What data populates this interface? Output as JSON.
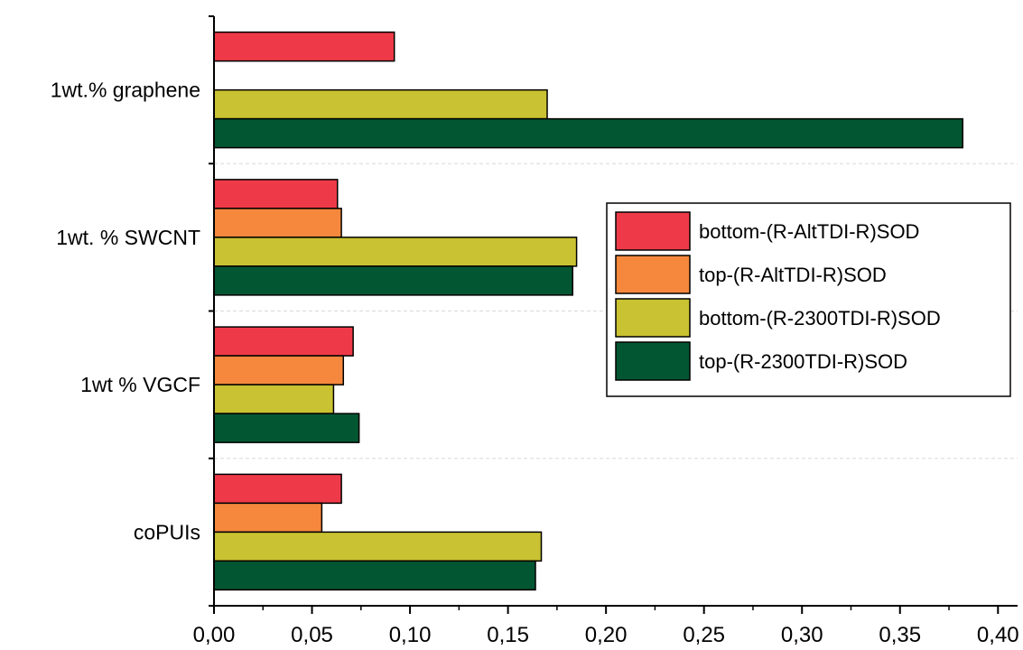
{
  "chart_data": {
    "type": "bar",
    "orientation": "horizontal",
    "categories": [
      "1wt.% graphene",
      "1wt. % SWCNT",
      "1wt % VGCF",
      "coPUIs"
    ],
    "series": [
      {
        "name": "bottom-(R-AltTDI-R)SOD",
        "color": "#ee3a48",
        "values": [
          0.092,
          0.063,
          0.071,
          0.065
        ]
      },
      {
        "name": "top-(R-AltTDI-R)SOD",
        "color": "#f5883c",
        "values": [
          null,
          0.065,
          0.066,
          0.055
        ]
      },
      {
        "name": "bottom-(R-2300TDI-R)SOD",
        "color": "#c9c232",
        "values": [
          0.17,
          0.185,
          0.061,
          0.167
        ]
      },
      {
        "name": "top-(R-2300TDI-R)SOD",
        "color": "#035632",
        "values": [
          0.382,
          0.183,
          0.074,
          0.164
        ]
      }
    ],
    "x_ticks": [
      "0,00",
      "0,05",
      "0,10",
      "0,15",
      "0,20",
      "0,25",
      "0,30",
      "0,35",
      "0,40"
    ],
    "xlim": [
      0,
      0.41
    ],
    "title": "",
    "xlabel": "",
    "ylabel": "",
    "legend_position": "right",
    "grid": "horizontal dashed separators between groups"
  }
}
